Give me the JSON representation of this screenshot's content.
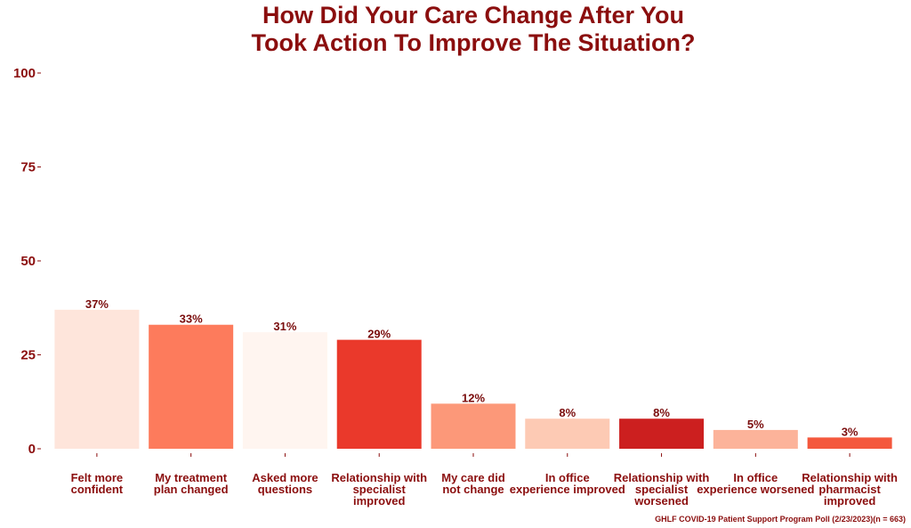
{
  "chart_data": {
    "type": "bar",
    "title_lines": [
      "How Did Your Care Change After You",
      "Took Action To Improve The Situation?"
    ],
    "categories": [
      "Felt more\nconfident",
      "My treatment\nplan changed",
      "Asked more\nquestions",
      "Relationship with\nspecialist\nimproved",
      "My care did\nnot change",
      "In office\nexperience improved",
      "Relationship with\nspecialist\nworsened",
      "In office\nexperience worsened",
      "Relationship with\npharmacist\nimproved"
    ],
    "values": [
      37,
      33,
      31,
      29,
      12,
      8,
      8,
      5,
      3
    ],
    "value_labels": [
      "37%",
      "33%",
      "31%",
      "29%",
      "12%",
      "8%",
      "8%",
      "5%",
      "3%"
    ],
    "bar_colors": [
      "#fee5db",
      "#fd7b5c",
      "#fff5f0",
      "#ea392b",
      "#fc9879",
      "#fdcab4",
      "#cc1f1f",
      "#fcb39a",
      "#f4583d"
    ],
    "ylim": [
      0,
      100
    ],
    "yticks": [
      0,
      25,
      50,
      75,
      100
    ],
    "ytick_labels": [
      "0",
      "25",
      "50",
      "75",
      "100"
    ],
    "grid": false,
    "caption": "GHLF COVID-19 Patient Support Program Poll (2/23/2023)(n = 663)"
  }
}
